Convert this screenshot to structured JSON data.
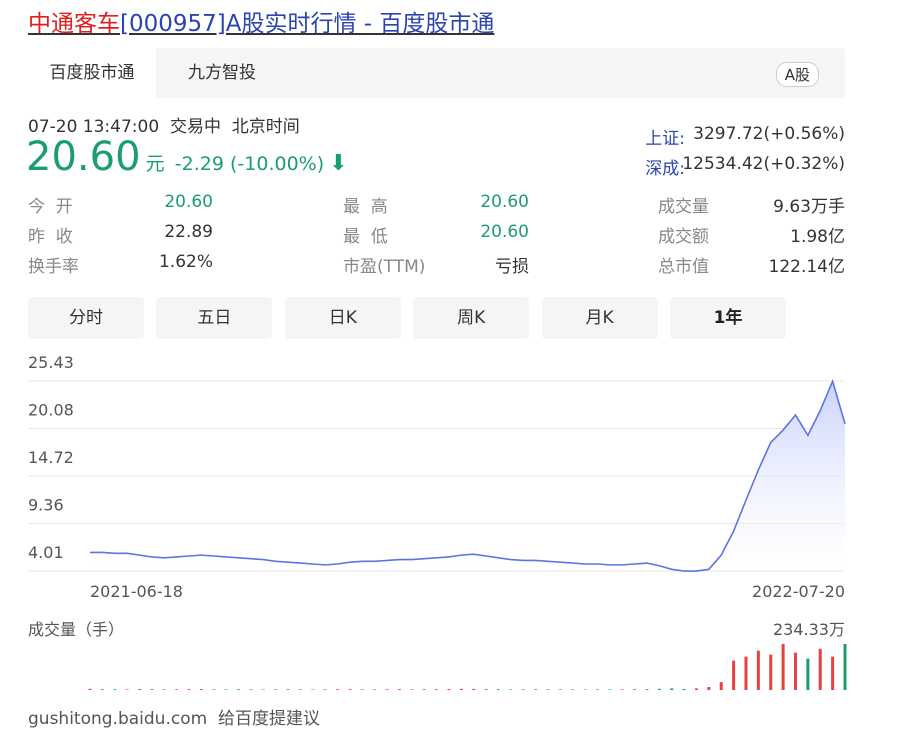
{
  "header": {
    "name": "中通客车",
    "rest": "[000957]A股实时行情 - 百度股市通"
  },
  "tabs": [
    "百度股市通",
    "九方智投"
  ],
  "badge": "A股",
  "quote": {
    "time": "07-20 13:47:00",
    "status": "交易中",
    "timezone": "北京时间",
    "price": "20.60",
    "unit": "元",
    "change": "-2.29 (-10.00%)"
  },
  "indices": [
    {
      "name": "上证:",
      "value": "3297.72(+0.56%)"
    },
    {
      "name": "深成:",
      "value": "12534.42(+0.32%)"
    }
  ],
  "stats": [
    [
      {
        "label": "今  开",
        "value": "20.60",
        "color": "#1a9e6e"
      },
      {
        "label": "最  高",
        "value": "20.60",
        "color": "#1a9e6e"
      },
      {
        "label": "成交量",
        "value": "9.63万手"
      }
    ],
    [
      {
        "label": "昨  收",
        "value": "22.89"
      },
      {
        "label": "最  低",
        "value": "20.60",
        "color": "#1a9e6e"
      },
      {
        "label": "成交额",
        "value": "1.98亿"
      }
    ],
    [
      {
        "label": "换手率",
        "value": "1.62%"
      },
      {
        "label": "市盈(TTM)",
        "value": "亏损"
      },
      {
        "label": "总市值",
        "value": "122.14亿"
      }
    ]
  ],
  "periods": [
    "分时",
    "五日",
    "日K",
    "周K",
    "月K",
    "1年"
  ],
  "chart_data": [
    {
      "type": "area",
      "color": "#5b76e0",
      "grid": true,
      "categories": [
        "2021-06-18",
        null,
        null,
        null,
        null,
        null,
        null,
        null,
        null,
        null,
        null,
        null,
        null,
        null,
        null,
        null,
        null,
        null,
        null,
        null,
        null,
        null,
        null,
        null,
        null,
        null,
        null,
        null,
        null,
        null,
        null,
        null,
        null,
        null,
        null,
        null,
        null,
        null,
        null,
        null,
        null,
        null,
        null,
        null,
        null,
        null,
        null,
        null,
        null,
        null,
        null,
        null,
        null,
        null,
        null,
        null,
        null,
        null,
        null,
        null,
        null,
        "2022-07-20"
      ],
      "values": [
        6.1,
        6.1,
        6.0,
        6.0,
        5.8,
        5.6,
        5.5,
        5.6,
        5.7,
        5.8,
        5.7,
        5.6,
        5.5,
        5.4,
        5.3,
        5.1,
        5.0,
        4.9,
        4.8,
        4.7,
        4.8,
        5.0,
        5.1,
        5.1,
        5.2,
        5.3,
        5.3,
        5.4,
        5.5,
        5.6,
        5.8,
        5.9,
        5.7,
        5.5,
        5.3,
        5.2,
        5.2,
        5.1,
        5.0,
        4.9,
        4.8,
        4.8,
        4.7,
        4.7,
        4.8,
        4.9,
        4.6,
        4.2,
        4.0,
        4.0,
        4.2,
        5.8,
        8.5,
        12.0,
        15.4,
        18.5,
        19.9,
        21.6,
        19.3,
        22.1,
        25.4,
        20.6
      ],
      "ylim": [
        4.01,
        25.43
      ],
      "yticks": [
        4.01,
        9.36,
        14.72,
        20.08,
        25.43
      ]
    },
    {
      "type": "bar",
      "title": "成交量（手）",
      "up_color": "#e84040",
      "down_color": "#1a9e6e",
      "values": [
        60000,
        40000,
        35000,
        30000,
        45000,
        40000,
        30000,
        35000,
        40000,
        45000,
        30000,
        30000,
        35000,
        30000,
        25000,
        30000,
        35000,
        30000,
        25000,
        30000,
        35000,
        40000,
        30000,
        30000,
        35000,
        40000,
        30000,
        35000,
        40000,
        50000,
        60000,
        55000,
        40000,
        35000,
        30000,
        30000,
        35000,
        30000,
        30000,
        30000,
        25000,
        30000,
        25000,
        30000,
        35000,
        40000,
        60000,
        80000,
        50000,
        80000,
        150000,
        400000,
        1500000,
        1700000,
        2000000,
        1800000,
        2343300,
        1900000,
        1600000,
        2100000,
        1700000,
        2343300
      ],
      "ylim": [
        0,
        2343300
      ],
      "yticks": [
        {
          "value": 2343300,
          "label": "234.33万"
        }
      ]
    }
  ],
  "footer": "gushitong.baidu.com  给百度提建议"
}
